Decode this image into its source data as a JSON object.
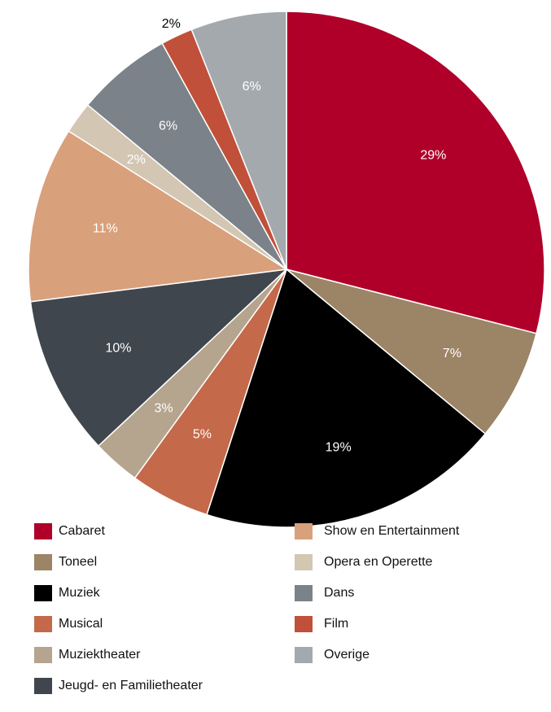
{
  "chart_data": {
    "type": "pie",
    "categories": [
      "Cabaret",
      "Toneel",
      "Muziek",
      "Musical",
      "Muziektheater",
      "Jeugd- en Familietheater",
      "Show en Entertainment",
      "Opera en Operette",
      "Dans",
      "Film",
      "Overige"
    ],
    "values": [
      29,
      7,
      19,
      5,
      3,
      10,
      11,
      2,
      6,
      2,
      6
    ],
    "value_labels": [
      "29%",
      "7%",
      "19%",
      "5%",
      "3%",
      "10%",
      "11%",
      "2%",
      "6%",
      "2%",
      "6%"
    ],
    "colors": [
      "#b0002a",
      "#9c8466",
      "#000000",
      "#c4694a",
      "#b5a58e",
      "#40464d",
      "#d9a07c",
      "#d3c6b2",
      "#7c8289",
      "#c0503a",
      "#a4a9ae"
    ],
    "label_positions": [
      "inside",
      "inside",
      "inside",
      "inside",
      "inside",
      "inside",
      "inside",
      "inside",
      "inside",
      "outside",
      "inside"
    ],
    "start_angle": 0,
    "direction": "clockwise",
    "legend": "bottom"
  }
}
